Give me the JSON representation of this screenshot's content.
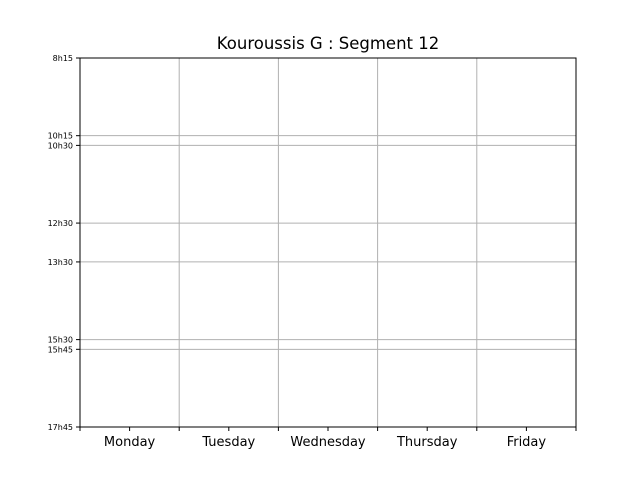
{
  "chart_data": {
    "type": "table",
    "title": "Kouroussis G : Segment 12",
    "xlabel": "",
    "ylabel": "",
    "categories": [
      "Monday",
      "Tuesday",
      "Wednesday",
      "Thursday",
      "Friday"
    ],
    "y_ticks": [
      {
        "label": "8h15",
        "hours": 8.25
      },
      {
        "label": "10h15",
        "hours": 10.25
      },
      {
        "label": "10h30",
        "hours": 10.5
      },
      {
        "label": "12h30",
        "hours": 12.5
      },
      {
        "label": "13h30",
        "hours": 13.5
      },
      {
        "label": "15h30",
        "hours": 15.5
      },
      {
        "label": "15h45",
        "hours": 15.75
      },
      {
        "label": "17h45",
        "hours": 17.75
      }
    ],
    "ylim": [
      8.25,
      17.75
    ],
    "y_inverted": true,
    "grid": true,
    "series": []
  },
  "colors": {
    "background": "#ffffff",
    "axes": "#000000",
    "grid": "#b0b0b0"
  }
}
